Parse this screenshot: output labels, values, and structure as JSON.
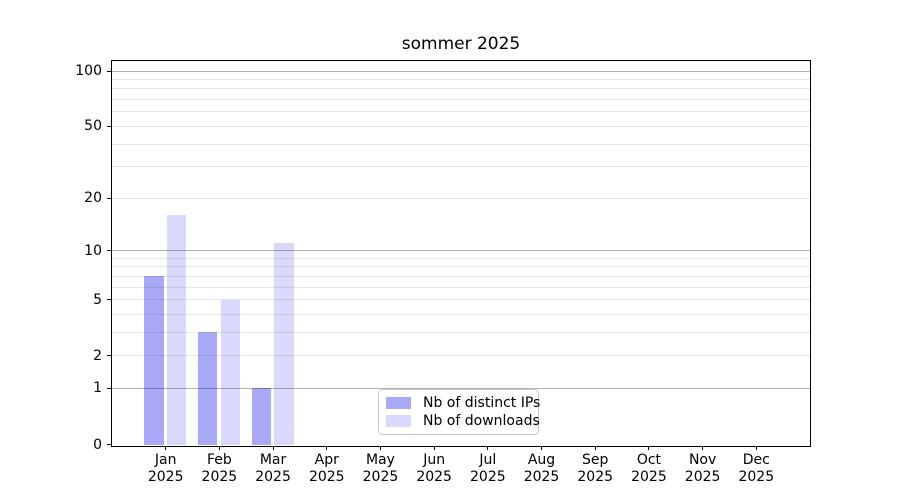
{
  "chart_data": {
    "type": "bar",
    "title": "sommer 2025",
    "categories": [
      "Jan",
      "Feb",
      "Mar",
      "Apr",
      "May",
      "Jun",
      "Jul",
      "Aug",
      "Sep",
      "Oct",
      "Nov",
      "Dec"
    ],
    "category_year": "2025",
    "series": [
      {
        "name": "Nb of distinct IPs",
        "color": "#a9a9f7",
        "values": [
          7,
          3,
          1,
          0,
          0,
          0,
          0,
          0,
          0,
          0,
          0,
          0
        ]
      },
      {
        "name": "Nb of downloads",
        "color": "#d9d9fb",
        "values": [
          16,
          5,
          11,
          0,
          0,
          0,
          0,
          0,
          0,
          0,
          0,
          0
        ]
      }
    ],
    "y_scale": "log1p",
    "y_tick_labels": [
      0,
      1,
      2,
      5,
      10,
      20,
      50,
      100
    ],
    "y_major_gridlines": [
      1,
      10,
      100
    ],
    "y_minor_gridlines": [
      2,
      3,
      4,
      5,
      6,
      7,
      8,
      9,
      20,
      30,
      40,
      50,
      60,
      70,
      80,
      90
    ],
    "ylim": [
      0,
      115
    ],
    "grid": "horizontal",
    "legend_position": "lower-center",
    "colors": {
      "axis": "#000000",
      "grid_major": "#b3b3b3",
      "grid_minor": "#e8e8e8",
      "legend_border": "#c9c9c9",
      "background": "#ffffff"
    }
  }
}
